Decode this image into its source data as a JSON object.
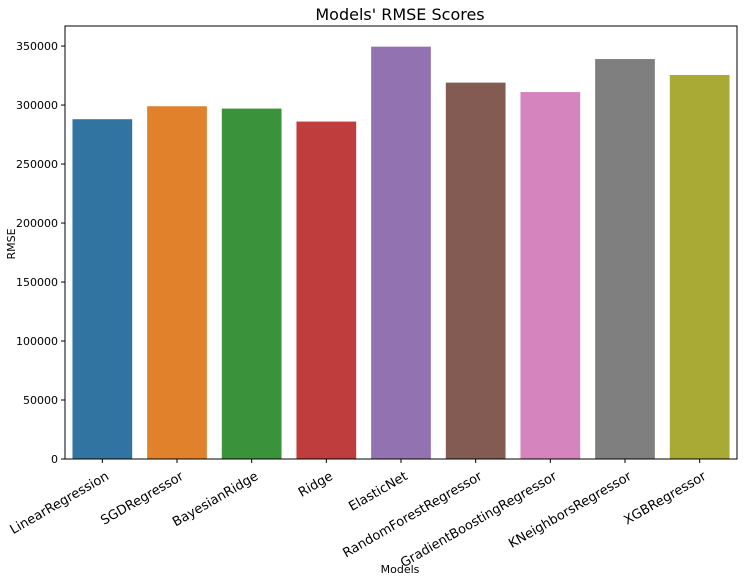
{
  "chart_data": {
    "type": "bar",
    "title": "Models' RMSE Scores",
    "xlabel": "Models",
    "ylabel": "RMSE",
    "categories": [
      "LinearRegression",
      "SGDRegressor",
      "BayesianRidge",
      "Ridge",
      "ElasticNet",
      "RandomForestRegressor",
      "GradientBoostingRegressor",
      "KNeighborsRegressor",
      "XGBRegressor"
    ],
    "values": [
      288000,
      299000,
      297000,
      286000,
      349500,
      319000,
      311000,
      339000,
      325500
    ],
    "colors": [
      "#3274a1",
      "#e1812c",
      "#3a923a",
      "#c03d3e",
      "#9372b2",
      "#845b53",
      "#d684bd",
      "#7f7f7f",
      "#a9aa35"
    ],
    "ylim": [
      0,
      367000
    ],
    "yticks": [
      0,
      50000,
      100000,
      150000,
      200000,
      250000,
      300000,
      350000
    ],
    "ytick_labels": [
      "0",
      "50000",
      "100000",
      "150000",
      "200000",
      "250000",
      "300000",
      "350000"
    ],
    "grid": false,
    "legend": "none"
  }
}
